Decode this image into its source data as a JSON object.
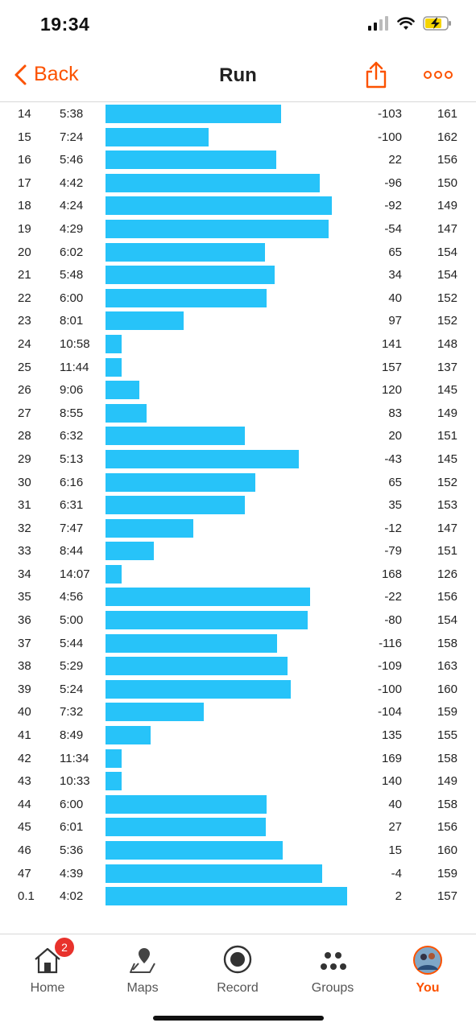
{
  "status": {
    "time": "19:34"
  },
  "nav": {
    "back_label": "Back",
    "title": "Run"
  },
  "colors": {
    "accent": "#fc5200",
    "bar": "#27c3f9",
    "badge": "#e8322c"
  },
  "splits": [
    {
      "km": "14",
      "pace": "5:38",
      "elev": "-103",
      "hr": "161"
    },
    {
      "km": "15",
      "pace": "7:24",
      "elev": "-100",
      "hr": "162"
    },
    {
      "km": "16",
      "pace": "5:46",
      "elev": "22",
      "hr": "156"
    },
    {
      "km": "17",
      "pace": "4:42",
      "elev": "-96",
      "hr": "150"
    },
    {
      "km": "18",
      "pace": "4:24",
      "elev": "-92",
      "hr": "149"
    },
    {
      "km": "19",
      "pace": "4:29",
      "elev": "-54",
      "hr": "147"
    },
    {
      "km": "20",
      "pace": "6:02",
      "elev": "65",
      "hr": "154"
    },
    {
      "km": "21",
      "pace": "5:48",
      "elev": "34",
      "hr": "154"
    },
    {
      "km": "22",
      "pace": "6:00",
      "elev": "40",
      "hr": "152"
    },
    {
      "km": "23",
      "pace": "8:01",
      "elev": "97",
      "hr": "152"
    },
    {
      "km": "24",
      "pace": "10:58",
      "elev": "141",
      "hr": "148"
    },
    {
      "km": "25",
      "pace": "11:44",
      "elev": "157",
      "hr": "137"
    },
    {
      "km": "26",
      "pace": "9:06",
      "elev": "120",
      "hr": "145"
    },
    {
      "km": "27",
      "pace": "8:55",
      "elev": "83",
      "hr": "149"
    },
    {
      "km": "28",
      "pace": "6:32",
      "elev": "20",
      "hr": "151"
    },
    {
      "km": "29",
      "pace": "5:13",
      "elev": "-43",
      "hr": "145"
    },
    {
      "km": "30",
      "pace": "6:16",
      "elev": "65",
      "hr": "152"
    },
    {
      "km": "31",
      "pace": "6:31",
      "elev": "35",
      "hr": "153"
    },
    {
      "km": "32",
      "pace": "7:47",
      "elev": "-12",
      "hr": "147"
    },
    {
      "km": "33",
      "pace": "8:44",
      "elev": "-79",
      "hr": "151"
    },
    {
      "km": "34",
      "pace": "14:07",
      "elev": "168",
      "hr": "126"
    },
    {
      "km": "35",
      "pace": "4:56",
      "elev": "-22",
      "hr": "156"
    },
    {
      "km": "36",
      "pace": "5:00",
      "elev": "-80",
      "hr": "154"
    },
    {
      "km": "37",
      "pace": "5:44",
      "elev": "-116",
      "hr": "158"
    },
    {
      "km": "38",
      "pace": "5:29",
      "elev": "-109",
      "hr": "163"
    },
    {
      "km": "39",
      "pace": "5:24",
      "elev": "-100",
      "hr": "160"
    },
    {
      "km": "40",
      "pace": "7:32",
      "elev": "-104",
      "hr": "159"
    },
    {
      "km": "41",
      "pace": "8:49",
      "elev": "135",
      "hr": "155"
    },
    {
      "km": "42",
      "pace": "11:34",
      "elev": "169",
      "hr": "158"
    },
    {
      "km": "43",
      "pace": "10:33",
      "elev": "140",
      "hr": "149"
    },
    {
      "km": "44",
      "pace": "6:00",
      "elev": "40",
      "hr": "158"
    },
    {
      "km": "45",
      "pace": "6:01",
      "elev": "27",
      "hr": "156"
    },
    {
      "km": "46",
      "pace": "5:36",
      "elev": "15",
      "hr": "160"
    },
    {
      "km": "47",
      "pace": "4:39",
      "elev": "-4",
      "hr": "159"
    },
    {
      "km": "0.1",
      "pace": "4:02",
      "elev": "2",
      "hr": "157"
    }
  ],
  "tabs": [
    {
      "label": "Home",
      "icon": "home-icon",
      "badge": "2"
    },
    {
      "label": "Maps",
      "icon": "map-pin-icon"
    },
    {
      "label": "Record",
      "icon": "record-icon"
    },
    {
      "label": "Groups",
      "icon": "groups-icon"
    },
    {
      "label": "You",
      "icon": "avatar",
      "active": true
    }
  ]
}
